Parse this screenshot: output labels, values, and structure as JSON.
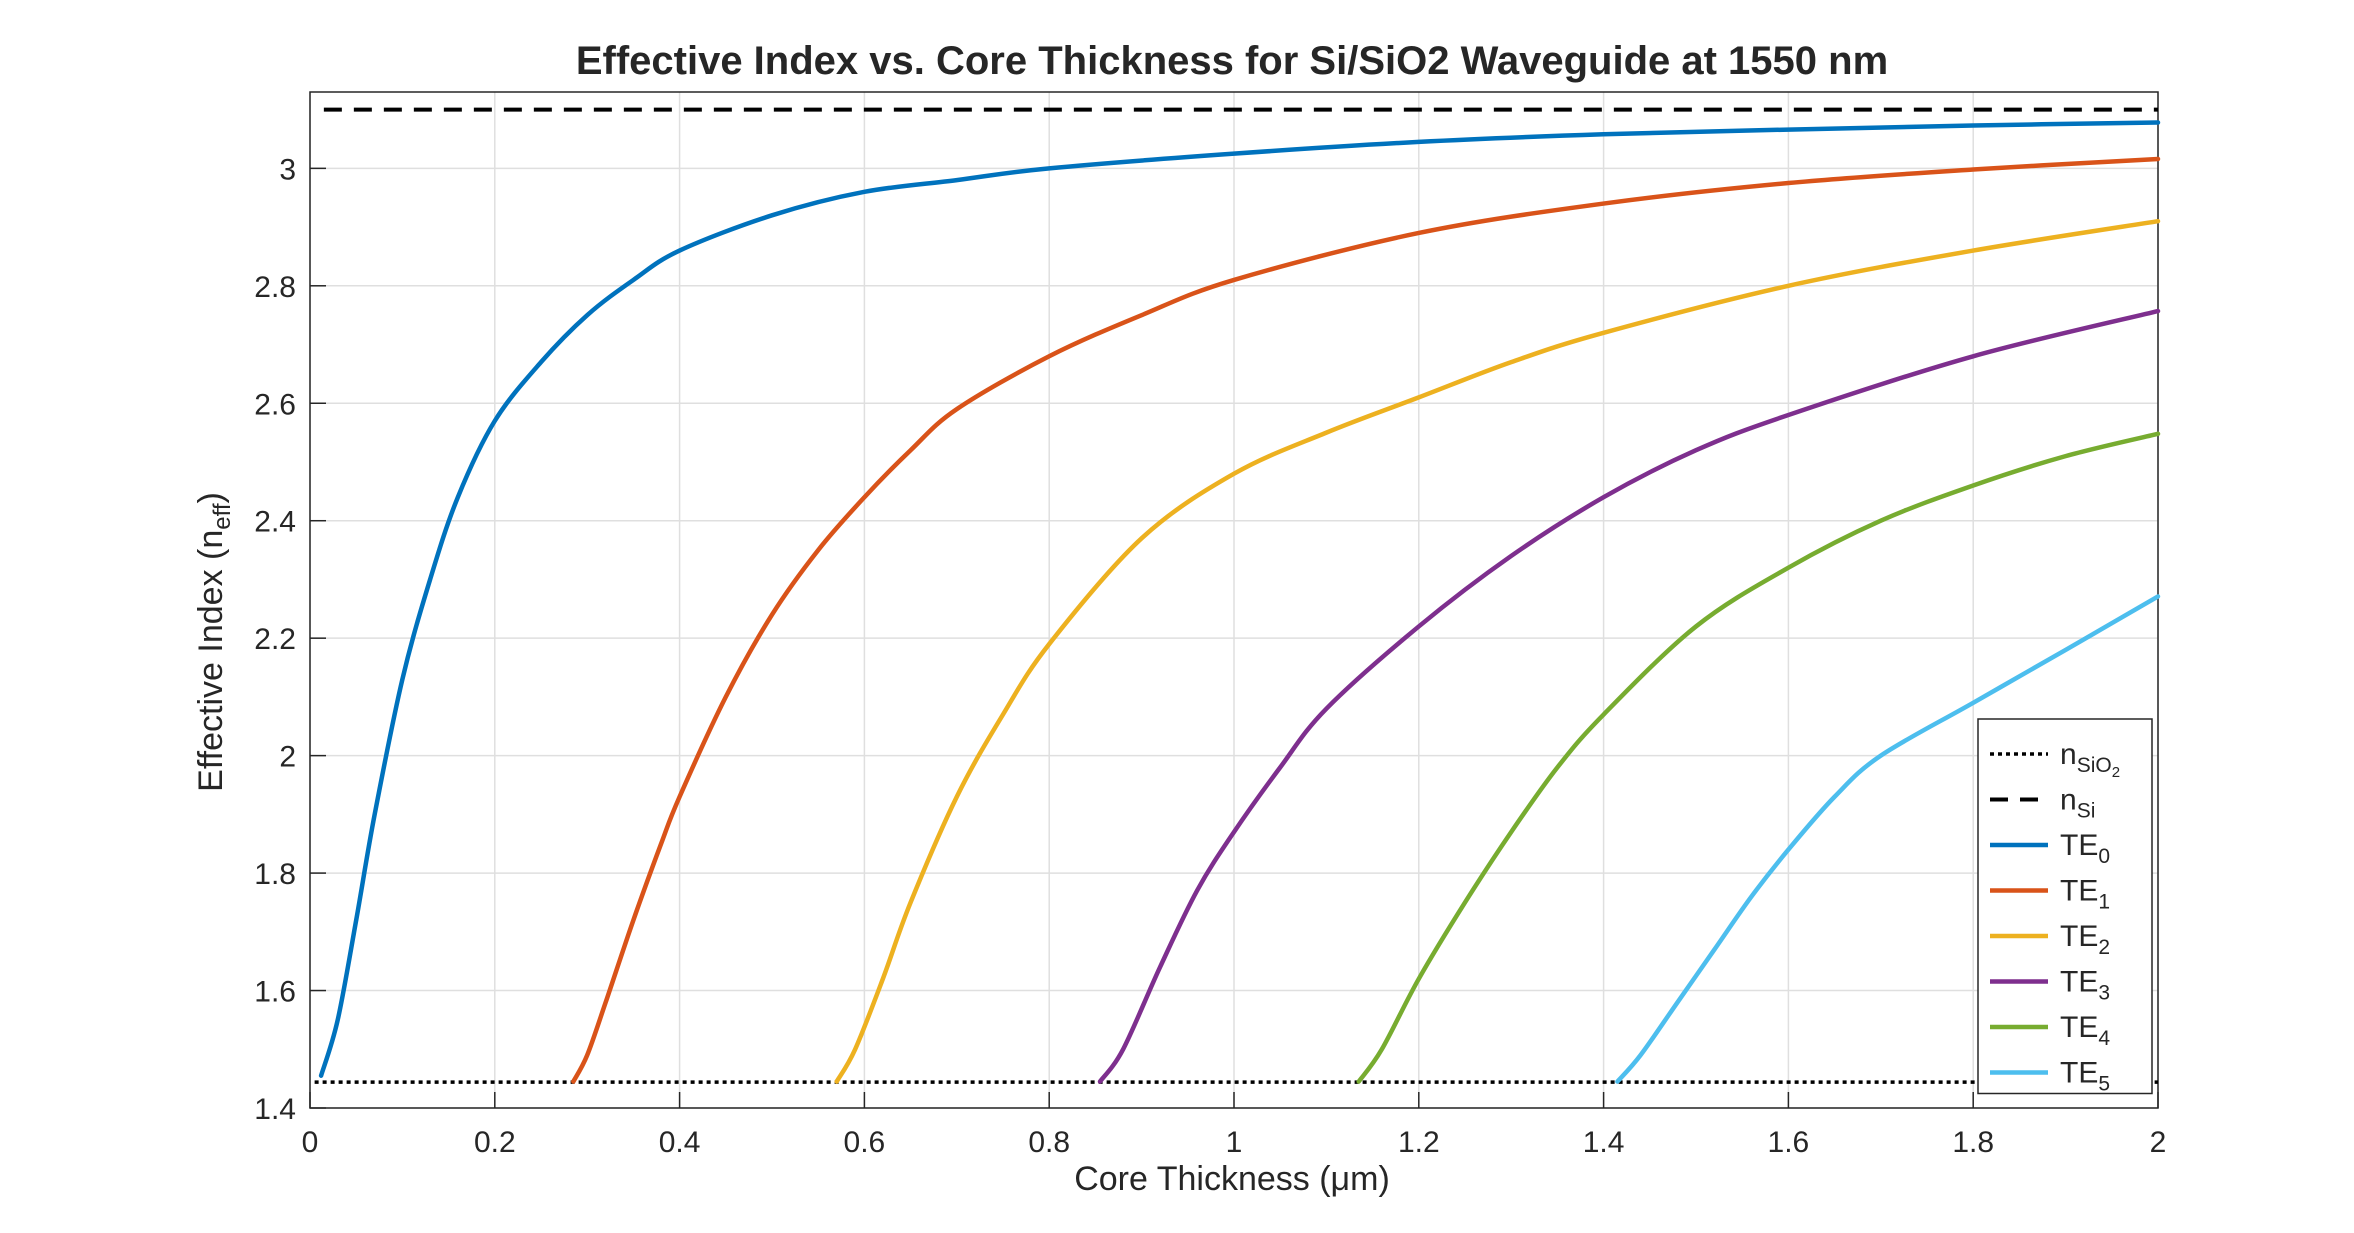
{
  "chart_data": {
    "type": "line",
    "title": "Effective Index vs. Core Thickness for Si/SiO2 Waveguide at 1550 nm",
    "xlabel": "Core  Thickness  (μm)",
    "ylabel": {
      "main": "Effective  Index  (n",
      "sub": "eff",
      "close": ")"
    },
    "xlim": [
      0,
      2
    ],
    "ylim": [
      1.4,
      3.13
    ],
    "xticks": [
      0,
      0.2,
      0.4,
      0.6,
      0.8,
      1,
      1.2,
      1.4,
      1.6,
      1.8,
      2
    ],
    "xtick_labels": [
      "0",
      "0.2",
      "0.4",
      "0.6",
      "0.8",
      "1",
      "1.2",
      "1.4",
      "1.6",
      "1.8",
      "2"
    ],
    "yticks": [
      1.4,
      1.6,
      1.8,
      2,
      2.2,
      2.4,
      2.6,
      2.8,
      3
    ],
    "ytick_labels": [
      "1.4",
      "1.6",
      "1.8",
      "2",
      "2.2",
      "2.4",
      "2.6",
      "2.8",
      "3"
    ],
    "grid": true,
    "legend_position": "bottom-right",
    "reference_lines": [
      {
        "name": "n",
        "sub": "SiO",
        "subsub": "2",
        "value": 1.444,
        "style": "dotted",
        "color": "#000000"
      },
      {
        "name": "n",
        "sub": "Si",
        "subsub": "",
        "value": 3.1,
        "style": "dashed",
        "color": "#000000"
      }
    ],
    "series": [
      {
        "name": "TE",
        "sub": "0",
        "color": "#0072BD",
        "x": [
          0.012,
          0.03,
          0.05,
          0.07,
          0.1,
          0.13,
          0.16,
          0.2,
          0.25,
          0.3,
          0.35,
          0.4,
          0.5,
          0.6,
          0.7,
          0.8,
          1.0,
          1.2,
          1.4,
          1.6,
          1.8,
          2.0
        ],
        "y": [
          1.455,
          1.55,
          1.72,
          1.9,
          2.13,
          2.3,
          2.44,
          2.57,
          2.67,
          2.75,
          2.81,
          2.86,
          2.92,
          2.96,
          2.98,
          3.0,
          3.025,
          3.045,
          3.058,
          3.066,
          3.073,
          3.078
        ]
      },
      {
        "name": "TE",
        "sub": "1",
        "color": "#D95319",
        "x": [
          0.285,
          0.3,
          0.32,
          0.35,
          0.38,
          0.4,
          0.45,
          0.5,
          0.55,
          0.6,
          0.65,
          0.7,
          0.8,
          0.9,
          1.0,
          1.2,
          1.4,
          1.6,
          1.8,
          2.0
        ],
        "y": [
          1.445,
          1.49,
          1.58,
          1.72,
          1.85,
          1.93,
          2.1,
          2.24,
          2.35,
          2.44,
          2.52,
          2.59,
          2.68,
          2.75,
          2.81,
          2.89,
          2.94,
          2.975,
          2.998,
          3.016
        ]
      },
      {
        "name": "TE",
        "sub": "2",
        "color": "#EDB120",
        "x": [
          0.57,
          0.59,
          0.62,
          0.65,
          0.7,
          0.75,
          0.8,
          0.9,
          1.0,
          1.1,
          1.2,
          1.3,
          1.4,
          1.6,
          1.8,
          2.0
        ],
        "y": [
          1.445,
          1.5,
          1.62,
          1.75,
          1.93,
          2.07,
          2.19,
          2.37,
          2.48,
          2.55,
          2.61,
          2.67,
          2.72,
          2.8,
          2.86,
          2.91
        ]
      },
      {
        "name": "TE",
        "sub": "3",
        "color": "#7E2F8E",
        "x": [
          0.855,
          0.88,
          0.92,
          0.96,
          1.0,
          1.05,
          1.1,
          1.2,
          1.3,
          1.4,
          1.5,
          1.6,
          1.8,
          2.0
        ],
        "y": [
          1.445,
          1.5,
          1.64,
          1.77,
          1.87,
          1.98,
          2.08,
          2.22,
          2.34,
          2.44,
          2.52,
          2.58,
          2.68,
          2.757
        ]
      },
      {
        "name": "TE",
        "sub": "4",
        "color": "#77AC30",
        "x": [
          1.135,
          1.16,
          1.2,
          1.25,
          1.3,
          1.35,
          1.4,
          1.5,
          1.6,
          1.7,
          1.8,
          1.9,
          2.0
        ],
        "y": [
          1.445,
          1.5,
          1.62,
          1.75,
          1.87,
          1.98,
          2.07,
          2.22,
          2.32,
          2.4,
          2.46,
          2.51,
          2.548
        ]
      },
      {
        "name": "TE",
        "sub": "5",
        "color": "#4DBEEE",
        "x": [
          1.415,
          1.44,
          1.48,
          1.52,
          1.56,
          1.6,
          1.65,
          1.7,
          1.8,
          1.9,
          2.0
        ],
        "y": [
          1.445,
          1.49,
          1.58,
          1.67,
          1.76,
          1.84,
          1.93,
          2.0,
          2.09,
          2.18,
          2.271
        ]
      }
    ]
  }
}
